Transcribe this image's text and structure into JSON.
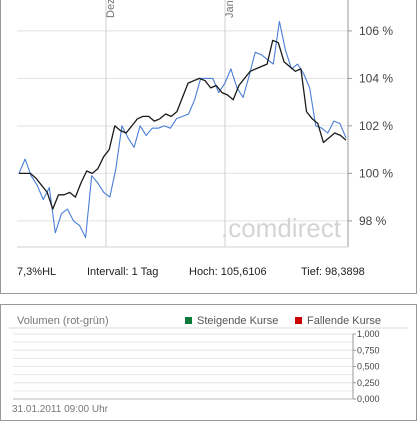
{
  "chart_data": [
    {
      "type": "line",
      "x_ticks": [
        "Dez",
        "Jan"
      ],
      "y_ticks": [
        "106 %",
        "104 %",
        "102 %",
        "100 %",
        "98 %"
      ],
      "ylim": [
        96.9,
        107.3
      ],
      "watermark": ".comdirect",
      "series": [
        {
          "color": "#1a1a1a",
          "values": [
            100.0,
            100.0,
            100.0,
            99.8,
            99.5,
            99.2,
            98.5,
            99.1,
            99.1,
            99.2,
            99.0,
            99.6,
            100.1,
            100.0,
            100.2,
            100.7,
            101.0,
            102.0,
            101.8,
            101.7,
            102.0,
            102.3,
            102.4,
            102.4,
            102.2,
            102.3,
            102.5,
            102.4,
            102.6,
            103.2,
            103.8,
            103.9,
            104.0,
            103.9,
            103.6,
            103.7,
            103.4,
            103.3,
            103.1,
            103.7,
            104.0,
            104.3,
            104.4,
            104.5,
            104.6,
            105.6,
            105.5,
            104.7,
            104.5,
            104.3,
            104.4,
            102.6,
            102.3,
            102.1,
            101.3,
            101.5,
            101.7,
            101.6,
            101.4
          ]
        },
        {
          "color": "#4a7ed6",
          "values": [
            100.0,
            100.6,
            99.9,
            99.5,
            98.9,
            99.4,
            97.5,
            98.3,
            98.5,
            98.0,
            97.8,
            97.3,
            99.9,
            99.6,
            99.2,
            99.0,
            100.2,
            102.0,
            101.5,
            101.1,
            102.0,
            101.6,
            101.9,
            101.9,
            102.0,
            101.9,
            102.3,
            102.4,
            102.5,
            103.1,
            104.0,
            104.0,
            104.0,
            103.4,
            103.8,
            104.4,
            103.6,
            103.2,
            104.1,
            105.1,
            105.0,
            104.8,
            104.6,
            106.4,
            105.2,
            104.4,
            104.6,
            104.2,
            103.6,
            102.0,
            101.9,
            101.7,
            102.2,
            102.1,
            101.5
          ]
        }
      ]
    },
    {
      "type": "bar",
      "title": "Volumen (rot-grün)",
      "y_ticks": [
        "1,000",
        "0,750",
        "0,500",
        "0,250",
        "0,000"
      ],
      "ylim": [
        0,
        1
      ],
      "legend": [
        {
          "label": "Steigende Kurse",
          "color": "#0a7a3a"
        },
        {
          "label": "Fallende Kurse",
          "color": "#cc0000"
        }
      ]
    }
  ],
  "stats": {
    "hl": "7,3%HL",
    "intervall": "Intervall: 1 Tag",
    "hoch": "Hoch: 105,6106",
    "tief": "Tief: 98,3898"
  },
  "timestamp": "31.01.2011 09:00 Uhr"
}
